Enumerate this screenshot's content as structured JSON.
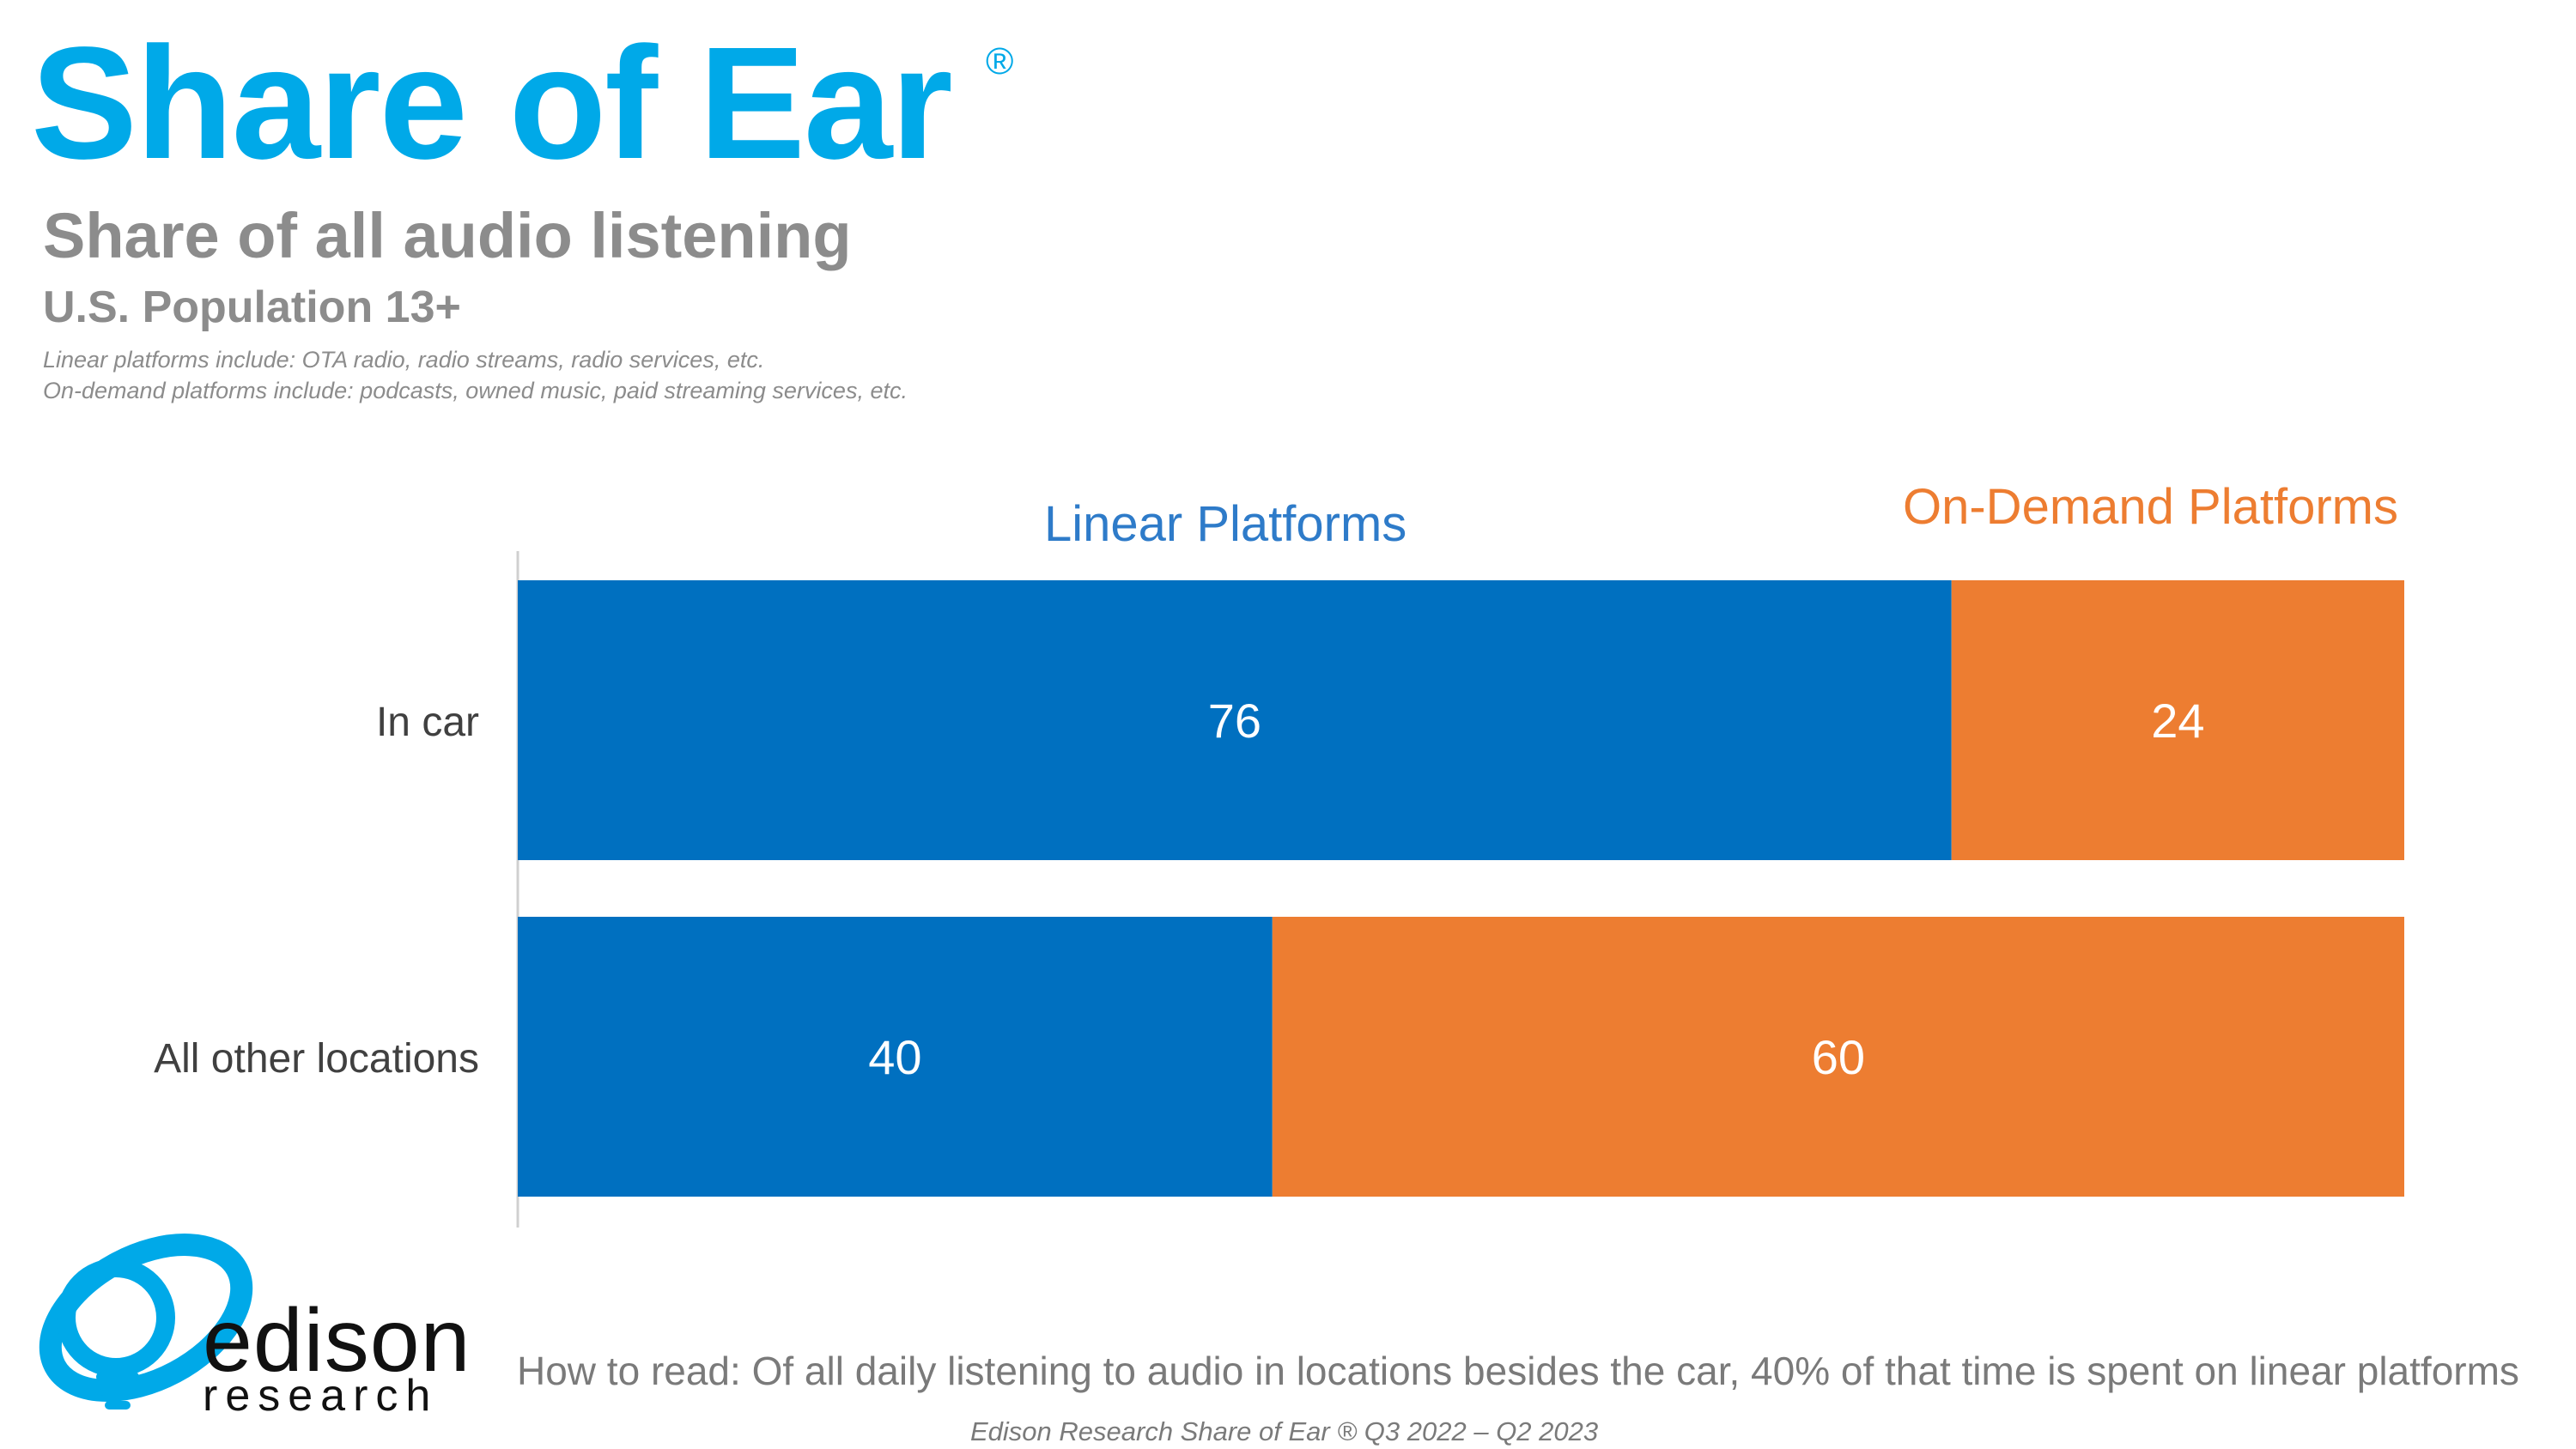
{
  "header": {
    "title": "Share of Ear",
    "registered_mark": "®",
    "subtitle": "Share of all audio listening",
    "population": "U.S. Population 13+",
    "notes": [
      "Linear platforms include: OTA radio, radio streams, radio services, etc.",
      "On-demand platforms include: podcasts, owned music, paid streaming services, etc."
    ]
  },
  "colors": {
    "brand": "#00a9e8",
    "linear": "#0070c0",
    "on_demand": "#ed7d31",
    "linear_label": "#2e7bc9"
  },
  "chart_data": {
    "type": "bar",
    "orientation": "horizontal",
    "stacked": true,
    "categories": [
      "In car",
      "All other locations"
    ],
    "series": [
      {
        "name": "Linear Platforms",
        "values": [
          76,
          40
        ],
        "color": "#0070c0"
      },
      {
        "name": "On-Demand Platforms",
        "values": [
          24,
          60
        ],
        "color": "#ed7d31"
      }
    ],
    "xlim": [
      0,
      100
    ],
    "grid": false,
    "legend": "top",
    "data_labels": true
  },
  "logo": {
    "word1": "edison",
    "word2": "research"
  },
  "how_to_read": "How to read: Of all daily listening to audio in locations besides the car, 40% of that time is spent on linear platforms",
  "footer": "Edison Research Share of Ear ® Q3 2022 – Q2 2023"
}
